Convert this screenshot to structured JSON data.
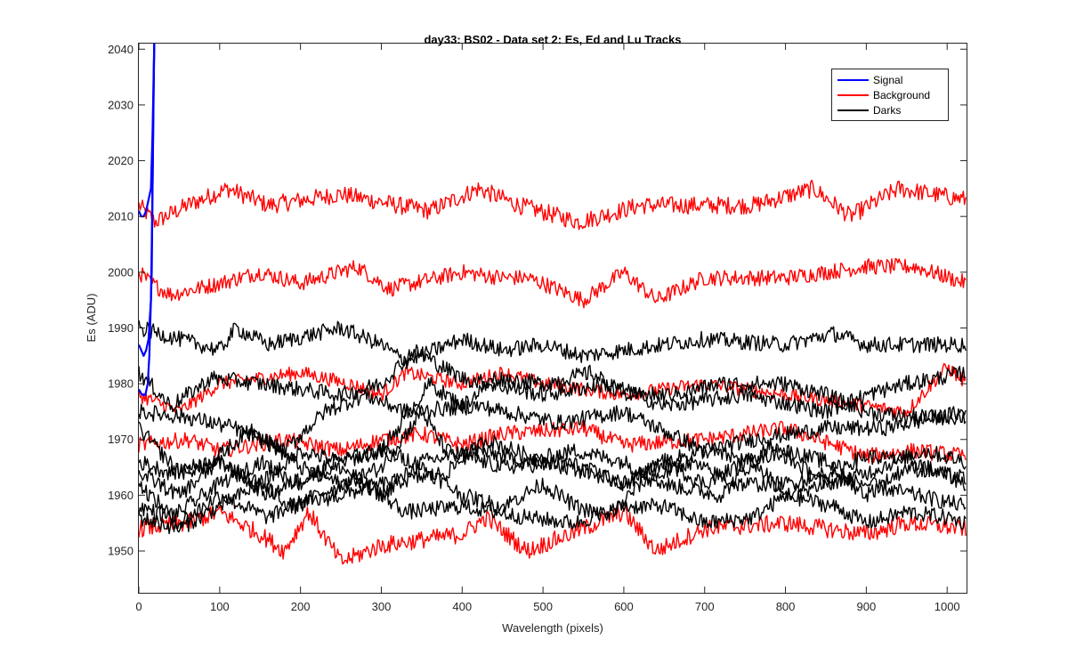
{
  "chart_data": {
    "type": "line",
    "title": "day33: BS02 - Data set 2: Es, Ed and Lu Tracks",
    "xlabel": "Wavelength (pixels)",
    "ylabel": "Es (ADU)",
    "xlim": [
      0,
      1024
    ],
    "ylim": [
      1942.5,
      2041
    ],
    "xticks": [
      0,
      100,
      200,
      300,
      400,
      500,
      600,
      700,
      800,
      900,
      1000
    ],
    "yticks": [
      1950,
      1960,
      1970,
      1980,
      1990,
      2000,
      2010,
      2020,
      2030,
      2040
    ],
    "grid": false,
    "legend_position": "top-right",
    "legend": [
      {
        "label": "Signal",
        "color": "#0000ff"
      },
      {
        "label": "Background",
        "color": "#ff0000"
      },
      {
        "label": "Darks",
        "color": "#000000"
      }
    ],
    "series": [
      {
        "name": "Signal",
        "color": "#0000ff",
        "points": [
          [
            0,
            1987
          ],
          [
            3,
            1986
          ],
          [
            6,
            1985
          ],
          [
            9,
            1986
          ],
          [
            12,
            1988
          ],
          [
            15,
            1995
          ],
          [
            17,
            2015
          ],
          [
            19,
            2041
          ]
        ]
      },
      {
        "name": "Signal",
        "color": "#0000ff",
        "points": [
          [
            0,
            2011
          ],
          [
            3,
            2010
          ],
          [
            6,
            2010
          ],
          [
            9,
            2011
          ],
          [
            12,
            2013
          ],
          [
            15,
            2015
          ],
          [
            17,
            2025
          ],
          [
            19,
            2041
          ]
        ]
      },
      {
        "name": "Signal",
        "color": "#0000ff",
        "points": [
          [
            0,
            1979
          ],
          [
            4,
            1978
          ],
          [
            8,
            1978
          ],
          [
            11,
            1980
          ],
          [
            13,
            1985
          ],
          [
            16,
            2000
          ],
          [
            18,
            2030
          ],
          [
            19,
            2041
          ]
        ]
      },
      {
        "name": "Background",
        "color": "#ff0000",
        "noise": 1.0,
        "points": [
          [
            0,
            2012
          ],
          [
            20,
            2009
          ],
          [
            60,
            2012
          ],
          [
            110,
            2015
          ],
          [
            160,
            2012
          ],
          [
            250,
            2014
          ],
          [
            320,
            2012
          ],
          [
            360,
            2011
          ],
          [
            420,
            2015
          ],
          [
            470,
            2012
          ],
          [
            545,
            2009
          ],
          [
            620,
            2012
          ],
          [
            700,
            2012
          ],
          [
            760,
            2012
          ],
          [
            835,
            2015
          ],
          [
            880,
            2010
          ],
          [
            940,
            2015
          ],
          [
            1024,
            2013
          ]
        ]
      },
      {
        "name": "Background",
        "color": "#ff0000",
        "noise": 0.9,
        "points": [
          [
            0,
            2000
          ],
          [
            15,
            1998
          ],
          [
            40,
            1996
          ],
          [
            100,
            1998
          ],
          [
            150,
            2000
          ],
          [
            200,
            1998
          ],
          [
            270,
            2001
          ],
          [
            310,
            1997
          ],
          [
            340,
            1998
          ],
          [
            400,
            2000
          ],
          [
            450,
            1999
          ],
          [
            480,
            1999
          ],
          [
            500,
            1998
          ],
          [
            550,
            1995
          ],
          [
            600,
            2000
          ],
          [
            640,
            1995
          ],
          [
            700,
            1999
          ],
          [
            800,
            1999
          ],
          [
            900,
            2001
          ],
          [
            960,
            2001
          ],
          [
            1024,
            1998
          ]
        ]
      },
      {
        "name": "Background",
        "color": "#ff0000",
        "noise": 0.8,
        "points": [
          [
            0,
            1978
          ],
          [
            50,
            1975
          ],
          [
            100,
            1980
          ],
          [
            200,
            1982
          ],
          [
            260,
            1980
          ],
          [
            300,
            1978
          ],
          [
            330,
            1982
          ],
          [
            400,
            1980
          ],
          [
            450,
            1982
          ],
          [
            500,
            1980
          ],
          [
            600,
            1978
          ],
          [
            700,
            1980
          ],
          [
            800,
            1978
          ],
          [
            900,
            1976
          ],
          [
            950,
            1975
          ],
          [
            1000,
            1983
          ],
          [
            1024,
            1980
          ]
        ]
      },
      {
        "name": "Background",
        "color": "#ff0000",
        "noise": 0.9,
        "points": [
          [
            0,
            1969
          ],
          [
            60,
            1970
          ],
          [
            100,
            1968
          ],
          [
            180,
            1970
          ],
          [
            250,
            1968
          ],
          [
            300,
            1970
          ],
          [
            350,
            1971
          ],
          [
            400,
            1969
          ],
          [
            450,
            1971
          ],
          [
            550,
            1972
          ],
          [
            600,
            1969
          ],
          [
            700,
            1970
          ],
          [
            800,
            1972
          ],
          [
            900,
            1967
          ],
          [
            960,
            1968
          ],
          [
            1024,
            1967
          ]
        ]
      },
      {
        "name": "Background",
        "color": "#ff0000",
        "noise": 1.0,
        "points": [
          [
            0,
            1954
          ],
          [
            60,
            1955
          ],
          [
            100,
            1957
          ],
          [
            150,
            1953
          ],
          [
            180,
            1950
          ],
          [
            210,
            1957
          ],
          [
            250,
            1948
          ],
          [
            300,
            1951
          ],
          [
            400,
            1953
          ],
          [
            430,
            1956
          ],
          [
            480,
            1950
          ],
          [
            550,
            1954
          ],
          [
            600,
            1957
          ],
          [
            640,
            1950
          ],
          [
            700,
            1954
          ],
          [
            800,
            1955
          ],
          [
            900,
            1953
          ],
          [
            950,
            1955
          ],
          [
            1024,
            1954
          ]
        ]
      },
      {
        "name": "Darks",
        "color": "#000000",
        "noise": 0.9,
        "points": [
          [
            0,
            1990
          ],
          [
            50,
            1988
          ],
          [
            100,
            1986
          ],
          [
            120,
            1990
          ],
          [
            160,
            1987
          ],
          [
            250,
            1990
          ],
          [
            300,
            1987
          ],
          [
            330,
            1984
          ],
          [
            400,
            1988
          ],
          [
            450,
            1986
          ],
          [
            500,
            1987
          ],
          [
            550,
            1985
          ],
          [
            600,
            1986
          ],
          [
            700,
            1988
          ],
          [
            800,
            1987
          ],
          [
            860,
            1989
          ],
          [
            900,
            1987
          ],
          [
            1024,
            1987
          ]
        ]
      },
      {
        "name": "Darks",
        "color": "#000000",
        "noise": 0.9,
        "points": [
          [
            0,
            1982
          ],
          [
            40,
            1976
          ],
          [
            90,
            1981
          ],
          [
            150,
            1980
          ],
          [
            250,
            1978
          ],
          [
            300,
            1980
          ],
          [
            340,
            1986
          ],
          [
            400,
            1981
          ],
          [
            500,
            1978
          ],
          [
            580,
            1980
          ],
          [
            650,
            1976
          ],
          [
            750,
            1978
          ],
          [
            850,
            1975
          ],
          [
            900,
            1978
          ],
          [
            950,
            1980
          ],
          [
            1024,
            1982
          ]
        ]
      },
      {
        "name": "Darks",
        "color": "#000000",
        "noise": 0.9,
        "points": [
          [
            0,
            1975
          ],
          [
            60,
            1974
          ],
          [
            120,
            1972
          ],
          [
            180,
            1968
          ],
          [
            230,
            1975
          ],
          [
            280,
            1978
          ],
          [
            330,
            1975
          ],
          [
            420,
            1976
          ],
          [
            520,
            1973
          ],
          [
            600,
            1975
          ],
          [
            700,
            1968
          ],
          [
            760,
            1970
          ],
          [
            850,
            1972
          ],
          [
            920,
            1972
          ],
          [
            1024,
            1975
          ]
        ]
      },
      {
        "name": "Darks",
        "color": "#000000",
        "noise": 0.9,
        "points": [
          [
            0,
            1966
          ],
          [
            40,
            1964
          ],
          [
            90,
            1966
          ],
          [
            140,
            1972
          ],
          [
            200,
            1965
          ],
          [
            250,
            1962
          ],
          [
            300,
            1965
          ],
          [
            350,
            1975
          ],
          [
            380,
            1968
          ],
          [
            450,
            1965
          ],
          [
            530,
            1966
          ],
          [
            600,
            1962
          ],
          [
            650,
            1966
          ],
          [
            700,
            1962
          ],
          [
            750,
            1966
          ],
          [
            800,
            1968
          ],
          [
            850,
            1966
          ],
          [
            900,
            1960
          ],
          [
            950,
            1965
          ],
          [
            1024,
            1963
          ]
        ]
      },
      {
        "name": "Darks",
        "color": "#000000",
        "noise": 0.9,
        "points": [
          [
            0,
            1972
          ],
          [
            50,
            1964
          ],
          [
            100,
            1966
          ],
          [
            160,
            1960
          ],
          [
            200,
            1963
          ],
          [
            250,
            1965
          ],
          [
            300,
            1960
          ],
          [
            350,
            1966
          ],
          [
            420,
            1968
          ],
          [
            480,
            1966
          ],
          [
            540,
            1968
          ],
          [
            600,
            1966
          ],
          [
            650,
            1962
          ],
          [
            720,
            1960
          ],
          [
            780,
            1969
          ],
          [
            850,
            1962
          ],
          [
            900,
            1964
          ],
          [
            970,
            1968
          ],
          [
            1024,
            1966
          ]
        ]
      },
      {
        "name": "Darks",
        "color": "#000000",
        "noise": 0.9,
        "points": [
          [
            0,
            1962
          ],
          [
            50,
            1955
          ],
          [
            100,
            1960
          ],
          [
            160,
            1956
          ],
          [
            220,
            1960
          ],
          [
            270,
            1963
          ],
          [
            330,
            1957
          ],
          [
            400,
            1958
          ],
          [
            480,
            1956
          ],
          [
            540,
            1955
          ],
          [
            600,
            1958
          ],
          [
            650,
            1958
          ],
          [
            700,
            1955
          ],
          [
            760,
            1956
          ],
          [
            800,
            1960
          ],
          [
            870,
            1963
          ],
          [
            930,
            1961
          ],
          [
            1024,
            1958
          ]
        ]
      },
      {
        "name": "Darks",
        "color": "#000000",
        "noise": 0.9,
        "points": [
          [
            0,
            1956
          ],
          [
            50,
            1954
          ],
          [
            100,
            1958
          ],
          [
            150,
            1962
          ],
          [
            190,
            1958
          ],
          [
            250,
            1960
          ],
          [
            300,
            1962
          ],
          [
            380,
            1964
          ],
          [
            430,
            1970
          ],
          [
            500,
            1966
          ],
          [
            560,
            1964
          ],
          [
            600,
            1962
          ],
          [
            650,
            1966
          ],
          [
            700,
            1968
          ],
          [
            760,
            1966
          ],
          [
            800,
            1960
          ],
          [
            860,
            1958
          ],
          [
            900,
            1955
          ],
          [
            950,
            1957
          ],
          [
            1000,
            1956
          ],
          [
            1024,
            1955
          ]
        ]
      },
      {
        "name": "Darks",
        "color": "#000000",
        "noise": 0.9,
        "points": [
          [
            0,
            1958
          ],
          [
            40,
            1956
          ],
          [
            100,
            1962
          ],
          [
            150,
            1966
          ],
          [
            200,
            1962
          ],
          [
            240,
            1966
          ],
          [
            300,
            1968
          ],
          [
            360,
            1980
          ],
          [
            400,
            1976
          ],
          [
            440,
            1981
          ],
          [
            500,
            1980
          ],
          [
            560,
            1982
          ],
          [
            600,
            1978
          ],
          [
            660,
            1978
          ],
          [
            720,
            1980
          ],
          [
            800,
            1980
          ],
          [
            850,
            1978
          ],
          [
            900,
            1975
          ],
          [
            950,
            1974
          ],
          [
            1024,
            1974
          ]
        ]
      },
      {
        "name": "Darks",
        "color": "#000000",
        "noise": 0.9,
        "points": [
          [
            0,
            1964
          ],
          [
            50,
            1960
          ],
          [
            100,
            1966
          ],
          [
            150,
            1962
          ],
          [
            200,
            1968
          ],
          [
            250,
            1966
          ],
          [
            300,
            1968
          ],
          [
            340,
            1966
          ],
          [
            400,
            1960
          ],
          [
            450,
            1958
          ],
          [
            500,
            1962
          ],
          [
            540,
            1958
          ],
          [
            580,
            1956
          ],
          [
            620,
            1962
          ],
          [
            680,
            1966
          ],
          [
            740,
            1962
          ],
          [
            800,
            1962
          ],
          [
            850,
            1964
          ],
          [
            900,
            1967
          ],
          [
            960,
            1966
          ],
          [
            1024,
            1962
          ]
        ]
      }
    ]
  }
}
